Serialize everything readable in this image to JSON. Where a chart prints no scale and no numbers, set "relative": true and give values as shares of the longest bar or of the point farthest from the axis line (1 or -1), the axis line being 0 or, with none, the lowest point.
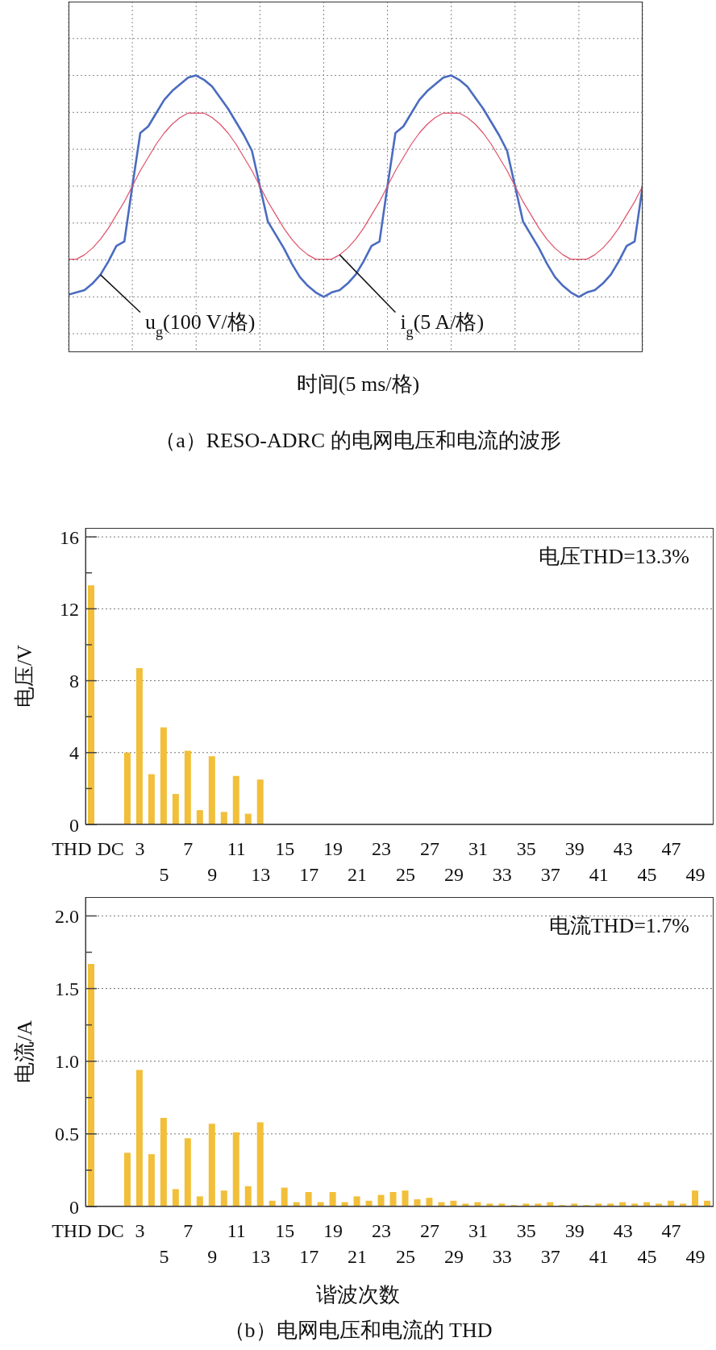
{
  "chart_data": [
    {
      "type": "line",
      "relative": true,
      "grid": true,
      "marker": "none",
      "xlabel": "时间(5 ms/格)",
      "annotations": [
        "（a）RESO-ADRC 的电网电压和电流的波形"
      ],
      "categories": [
        null,
        null,
        null,
        null,
        null,
        null,
        null,
        null,
        null,
        null,
        null,
        null,
        null,
        null,
        null,
        null,
        null,
        null,
        null,
        null,
        null,
        null,
        null,
        null,
        null,
        null,
        null,
        null,
        null,
        null,
        null,
        null,
        null,
        null,
        null,
        null,
        null,
        null,
        null,
        null,
        null,
        null,
        null,
        null,
        null,
        null,
        null,
        null,
        null,
        null,
        null,
        null,
        null,
        null,
        null,
        null,
        null,
        null,
        null,
        null,
        null,
        null,
        null,
        null,
        null,
        null,
        null,
        null,
        null,
        null,
        null,
        null,
        null
      ],
      "series": [
        {
          "name": "u$_{g}$(100 V/格)",
          "color": "#4a6cc0",
          "values": [
            0.01,
            0.02,
            0.03,
            0.06,
            0.1,
            0.16,
            0.23,
            0.25,
            0.5,
            0.74,
            0.77,
            0.83,
            0.89,
            0.93,
            0.96,
            0.99,
            1.0,
            0.98,
            0.95,
            0.9,
            0.85,
            0.79,
            0.73,
            0.66,
            0.5,
            0.34,
            0.28,
            0.22,
            0.15,
            0.09,
            0.05,
            0.02,
            0,
            0.02,
            0.03,
            0.06,
            0.1,
            0.16,
            0.23,
            0.25,
            0.5,
            0.74,
            0.77,
            0.83,
            0.89,
            0.93,
            0.96,
            0.99,
            1.0,
            0.98,
            0.95,
            0.9,
            0.85,
            0.79,
            0.73,
            0.66,
            0.5,
            0.34,
            0.28,
            0.22,
            0.15,
            0.09,
            0.05,
            0.02,
            0,
            0.02,
            0.03,
            0.06,
            0.1,
            0.16,
            0.23,
            0.25,
            0.5
          ]
        },
        {
          "name": "i$_{g}$(5 A/格)",
          "color": "#e05068",
          "values": [
            0.17,
            0.17,
            0.19,
            0.22,
            0.26,
            0.31,
            0.37,
            0.43,
            0.5,
            0.57,
            0.63,
            0.69,
            0.74,
            0.78,
            0.81,
            0.83,
            0.83,
            0.83,
            0.81,
            0.78,
            0.74,
            0.69,
            0.63,
            0.57,
            0.5,
            0.43,
            0.37,
            0.31,
            0.26,
            0.22,
            0.19,
            0.17,
            0.17,
            0.17,
            0.19,
            0.22,
            0.26,
            0.31,
            0.37,
            0.43,
            0.5,
            0.57,
            0.63,
            0.69,
            0.74,
            0.78,
            0.81,
            0.83,
            0.83,
            0.83,
            0.81,
            0.78,
            0.74,
            0.69,
            0.63,
            0.57,
            0.5,
            0.43,
            0.37,
            0.31,
            0.26,
            0.22,
            0.19,
            0.17,
            0.17,
            0.17,
            0.19,
            0.22,
            0.26,
            0.31,
            0.37,
            0.43,
            0.5
          ]
        }
      ]
    },
    {
      "type": "bar",
      "ylabel": "电压/V",
      "grid": "y",
      "color": "#f2bf3a",
      "annotations": [
        "电压THD=13.3%"
      ],
      "categories": [
        "THD",
        "DC",
        null,
        null,
        "3",
        null,
        "5",
        null,
        "7",
        null,
        "9",
        null,
        "11",
        null,
        "13",
        null,
        "15",
        null,
        "17",
        null,
        "19",
        null,
        "21",
        null,
        "23",
        null,
        "25",
        null,
        "27",
        null,
        "29",
        null,
        "31",
        null,
        "33",
        null,
        "35",
        null,
        "37",
        null,
        "39",
        null,
        "41",
        null,
        "43",
        null,
        "45",
        null,
        "47",
        null,
        "49",
        null
      ],
      "values": [
        13.3,
        0,
        0,
        4.0,
        8.7,
        2.8,
        5.4,
        1.7,
        4.1,
        0.8,
        3.8,
        0.7,
        2.7,
        0.6,
        2.5,
        0,
        null,
        0,
        null,
        0,
        null,
        0,
        0,
        0,
        0,
        0,
        0,
        0,
        0,
        0,
        0,
        0,
        0,
        0,
        0,
        0,
        0,
        0,
        0,
        0,
        0,
        0,
        0,
        0,
        0,
        0,
        0,
        0,
        0,
        0,
        0,
        0
      ],
      "ylim": [
        0,
        16.5
      ],
      "yticks": [
        0,
        4,
        8,
        12,
        16
      ]
    },
    {
      "type": "bar",
      "ylabel": "电流/A",
      "xlabel": "谐波次数",
      "grid": "y",
      "color": "#f2bf3a",
      "annotations": [
        "电流THD=1.7%",
        "（b）电网电压和电流的 THD"
      ],
      "categories": [
        "THD",
        "DC",
        null,
        null,
        "3",
        null,
        "5",
        null,
        "7",
        null,
        "9",
        null,
        "11",
        null,
        "13",
        null,
        "15",
        null,
        "17",
        null,
        "19",
        null,
        "21",
        null,
        "23",
        null,
        "25",
        null,
        "27",
        null,
        "29",
        null,
        "31",
        null,
        "33",
        null,
        "35",
        null,
        "37",
        null,
        "39",
        null,
        "41",
        null,
        "43",
        null,
        "45",
        null,
        "47",
        null,
        "49",
        null
      ],
      "values": [
        1.67,
        0,
        0,
        0.37,
        0.94,
        0.36,
        0.61,
        0.12,
        0.47,
        0.07,
        0.57,
        0.11,
        0.51,
        0.14,
        0.58,
        0.04,
        0.13,
        0.03,
        0.1,
        0.03,
        0.1,
        0.03,
        0.07,
        0.04,
        0.08,
        0.1,
        0.11,
        0.05,
        0.06,
        0.03,
        0.04,
        0.02,
        0.03,
        0.02,
        0.02,
        0.01,
        0.02,
        0.02,
        0.03,
        0.01,
        0.02,
        0.01,
        0.02,
        0.02,
        0.03,
        0.02,
        0.03,
        0.02,
        0.04,
        0.02,
        0.11,
        0.04
      ],
      "ylim": [
        0,
        2.13
      ],
      "yticks": [
        0,
        0.5,
        {
          "value": 1,
          "label": "1.0"
        },
        1.5,
        {
          "value": 2,
          "label": "2.0"
        }
      ]
    }
  ]
}
